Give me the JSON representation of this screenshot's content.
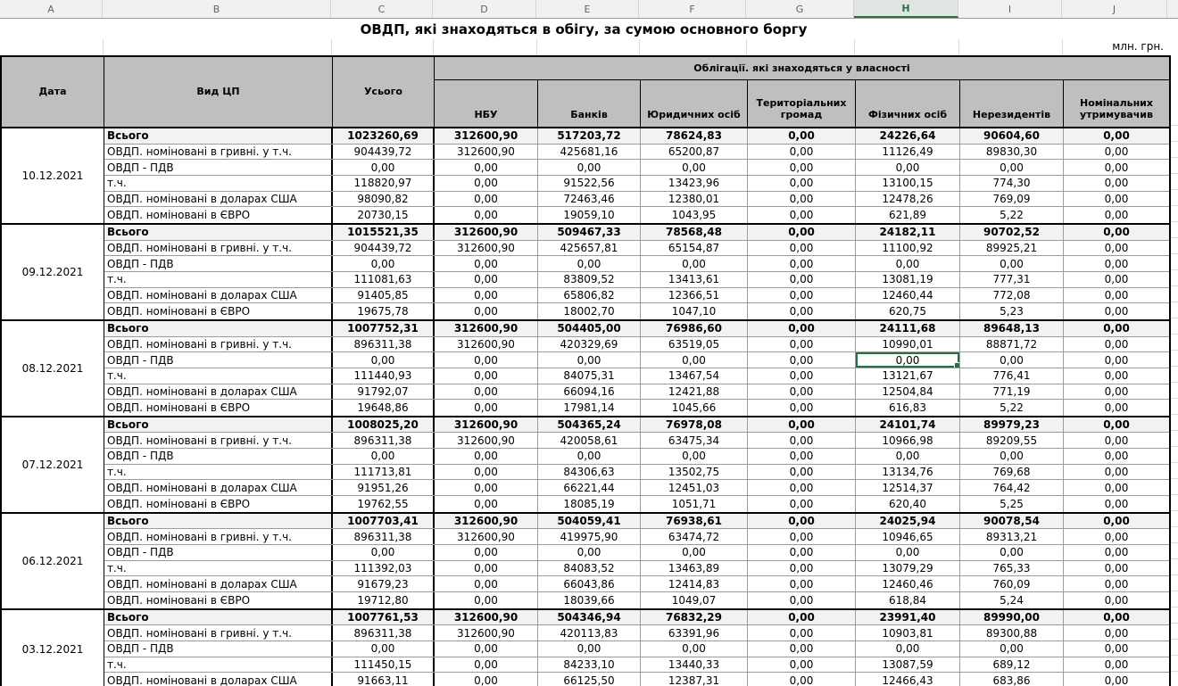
{
  "sheet": {
    "column_letters": [
      "A",
      "B",
      "C",
      "D",
      "E",
      "F",
      "G",
      "H",
      "I",
      "J"
    ],
    "selected_column": "H",
    "title": "ОВДП, які знаходяться в обігу, за сумою основного боргу",
    "units": "млн. грн.",
    "accent_green": "#217346",
    "header_fill": "#bfbfbf",
    "total_row_fill": "#f2f2f2"
  },
  "table": {
    "header": {
      "date": "Дата",
      "type": "Вид ЦП",
      "total": "Усього",
      "ownership_group": "Облігації. які знаходяться у власності",
      "owners": [
        "НБУ",
        "Банків",
        "Юридичних осіб",
        "Територіальних громад",
        "Фізичних осіб",
        "Нерезидентів",
        "Номінальних утримувачив"
      ]
    },
    "selected_cell": {
      "group_date": "08.12.2021",
      "row_label": "ОВДП - ПДВ",
      "column": "Фізичних осіб",
      "value": "0,00"
    },
    "groups": [
      {
        "date": "10.12.2021",
        "rows": [
          {
            "label": "Всього",
            "values": [
              "1023260,69",
              "312600,90",
              "517203,72",
              "78624,83",
              "0,00",
              "24226,64",
              "90604,60",
              "0,00"
            ]
          },
          {
            "label": "ОВДП. номіновані в гривні. у т.ч.",
            "values": [
              "904439,72",
              "312600,90",
              "425681,16",
              "65200,87",
              "0,00",
              "11126,49",
              "89830,30",
              "0,00"
            ]
          },
          {
            "label": "ОВДП - ПДВ",
            "values": [
              "0,00",
              "0,00",
              "0,00",
              "0,00",
              "0,00",
              "0,00",
              "0,00",
              "0,00"
            ]
          },
          {
            "label": "т.ч.",
            "values": [
              "118820,97",
              "0,00",
              "91522,56",
              "13423,96",
              "0,00",
              "13100,15",
              "774,30",
              "0,00"
            ]
          },
          {
            "label": "ОВДП. номіновані в доларах США",
            "values": [
              "98090,82",
              "0,00",
              "72463,46",
              "12380,01",
              "0,00",
              "12478,26",
              "769,09",
              "0,00"
            ]
          },
          {
            "label": "ОВДП. номіновані в ЄВРО",
            "values": [
              "20730,15",
              "0,00",
              "19059,10",
              "1043,95",
              "0,00",
              "621,89",
              "5,22",
              "0,00"
            ]
          }
        ]
      },
      {
        "date": "09.12.2021",
        "rows": [
          {
            "label": "Всього",
            "values": [
              "1015521,35",
              "312600,90",
              "509467,33",
              "78568,48",
              "0,00",
              "24182,11",
              "90702,52",
              "0,00"
            ]
          },
          {
            "label": "ОВДП. номіновані в гривні. у т.ч.",
            "values": [
              "904439,72",
              "312600,90",
              "425657,81",
              "65154,87",
              "0,00",
              "11100,92",
              "89925,21",
              "0,00"
            ]
          },
          {
            "label": "ОВДП - ПДВ",
            "values": [
              "0,00",
              "0,00",
              "0,00",
              "0,00",
              "0,00",
              "0,00",
              "0,00",
              "0,00"
            ]
          },
          {
            "label": "т.ч.",
            "values": [
              "111081,63",
              "0,00",
              "83809,52",
              "13413,61",
              "0,00",
              "13081,19",
              "777,31",
              "0,00"
            ]
          },
          {
            "label": "ОВДП. номіновані в доларах США",
            "values": [
              "91405,85",
              "0,00",
              "65806,82",
              "12366,51",
              "0,00",
              "12460,44",
              "772,08",
              "0,00"
            ]
          },
          {
            "label": "ОВДП. номіновані в ЄВРО",
            "values": [
              "19675,78",
              "0,00",
              "18002,70",
              "1047,10",
              "0,00",
              "620,75",
              "5,23",
              "0,00"
            ]
          }
        ]
      },
      {
        "date": "08.12.2021",
        "rows": [
          {
            "label": "Всього",
            "values": [
              "1007752,31",
              "312600,90",
              "504405,00",
              "76986,60",
              "0,00",
              "24111,68",
              "89648,13",
              "0,00"
            ]
          },
          {
            "label": "ОВДП. номіновані в гривні. у т.ч.",
            "values": [
              "896311,38",
              "312600,90",
              "420329,69",
              "63519,05",
              "0,00",
              "10990,01",
              "88871,72",
              "0,00"
            ]
          },
          {
            "label": "ОВДП - ПДВ",
            "values": [
              "0,00",
              "0,00",
              "0,00",
              "0,00",
              "0,00",
              "0,00",
              "0,00",
              "0,00"
            ]
          },
          {
            "label": "т.ч.",
            "values": [
              "111440,93",
              "0,00",
              "84075,31",
              "13467,54",
              "0,00",
              "13121,67",
              "776,41",
              "0,00"
            ]
          },
          {
            "label": "ОВДП. номіновані в доларах США",
            "values": [
              "91792,07",
              "0,00",
              "66094,16",
              "12421,88",
              "0,00",
              "12504,84",
              "771,19",
              "0,00"
            ]
          },
          {
            "label": "ОВДП. номіновані в ЄВРО",
            "values": [
              "19648,86",
              "0,00",
              "17981,14",
              "1045,66",
              "0,00",
              "616,83",
              "5,22",
              "0,00"
            ]
          }
        ]
      },
      {
        "date": "07.12.2021",
        "rows": [
          {
            "label": "Всього",
            "values": [
              "1008025,20",
              "312600,90",
              "504365,24",
              "76978,08",
              "0,00",
              "24101,74",
              "89979,23",
              "0,00"
            ]
          },
          {
            "label": "ОВДП. номіновані в гривні. у т.ч.",
            "values": [
              "896311,38",
              "312600,90",
              "420058,61",
              "63475,34",
              "0,00",
              "10966,98",
              "89209,55",
              "0,00"
            ]
          },
          {
            "label": "ОВДП - ПДВ",
            "values": [
              "0,00",
              "0,00",
              "0,00",
              "0,00",
              "0,00",
              "0,00",
              "0,00",
              "0,00"
            ]
          },
          {
            "label": "т.ч.",
            "values": [
              "111713,81",
              "0,00",
              "84306,63",
              "13502,75",
              "0,00",
              "13134,76",
              "769,68",
              "0,00"
            ]
          },
          {
            "label": "ОВДП. номіновані в доларах США",
            "values": [
              "91951,26",
              "0,00",
              "66221,44",
              "12451,03",
              "0,00",
              "12514,37",
              "764,42",
              "0,00"
            ]
          },
          {
            "label": "ОВДП. номіновані в ЄВРО",
            "values": [
              "19762,55",
              "0,00",
              "18085,19",
              "1051,71",
              "0,00",
              "620,40",
              "5,25",
              "0,00"
            ]
          }
        ]
      },
      {
        "date": "06.12.2021",
        "rows": [
          {
            "label": "Всього",
            "values": [
              "1007703,41",
              "312600,90",
              "504059,41",
              "76938,61",
              "0,00",
              "24025,94",
              "90078,54",
              "0,00"
            ]
          },
          {
            "label": "ОВДП. номіновані в гривні. у т.ч.",
            "values": [
              "896311,38",
              "312600,90",
              "419975,90",
              "63474,72",
              "0,00",
              "10946,65",
              "89313,21",
              "0,00"
            ]
          },
          {
            "label": "ОВДП - ПДВ",
            "values": [
              "0,00",
              "0,00",
              "0,00",
              "0,00",
              "0,00",
              "0,00",
              "0,00",
              "0,00"
            ]
          },
          {
            "label": "т.ч.",
            "values": [
              "111392,03",
              "0,00",
              "84083,52",
              "13463,89",
              "0,00",
              "13079,29",
              "765,33",
              "0,00"
            ]
          },
          {
            "label": "ОВДП. номіновані в доларах США",
            "values": [
              "91679,23",
              "0,00",
              "66043,86",
              "12414,83",
              "0,00",
              "12460,46",
              "760,09",
              "0,00"
            ]
          },
          {
            "label": "ОВДП. номіновані в ЄВРО",
            "values": [
              "19712,80",
              "0,00",
              "18039,66",
              "1049,07",
              "0,00",
              "618,84",
              "5,24",
              "0,00"
            ]
          }
        ]
      },
      {
        "date": "03.12.2021",
        "rows": [
          {
            "label": "Всього",
            "values": [
              "1007761,53",
              "312600,90",
              "504346,94",
              "76832,29",
              "0,00",
              "23991,40",
              "89990,00",
              "0,00"
            ]
          },
          {
            "label": "ОВДП. номіновані в гривні. у т.ч.",
            "values": [
              "896311,38",
              "312600,90",
              "420113,83",
              "63391,96",
              "0,00",
              "10903,81",
              "89300,88",
              "0,00"
            ]
          },
          {
            "label": "ОВДП - ПДВ",
            "values": [
              "0,00",
              "0,00",
              "0,00",
              "0,00",
              "0,00",
              "0,00",
              "0,00",
              "0,00"
            ]
          },
          {
            "label": "т.ч.",
            "values": [
              "111450,15",
              "0,00",
              "84233,10",
              "13440,33",
              "0,00",
              "13087,59",
              "689,12",
              "0,00"
            ]
          },
          {
            "label": "ОВДП. номіновані в доларах США",
            "values": [
              "91663,11",
              "0,00",
              "66125,50",
              "12387,31",
              "0,00",
              "12466,43",
              "683,86",
              "0,00"
            ]
          }
        ]
      }
    ]
  }
}
